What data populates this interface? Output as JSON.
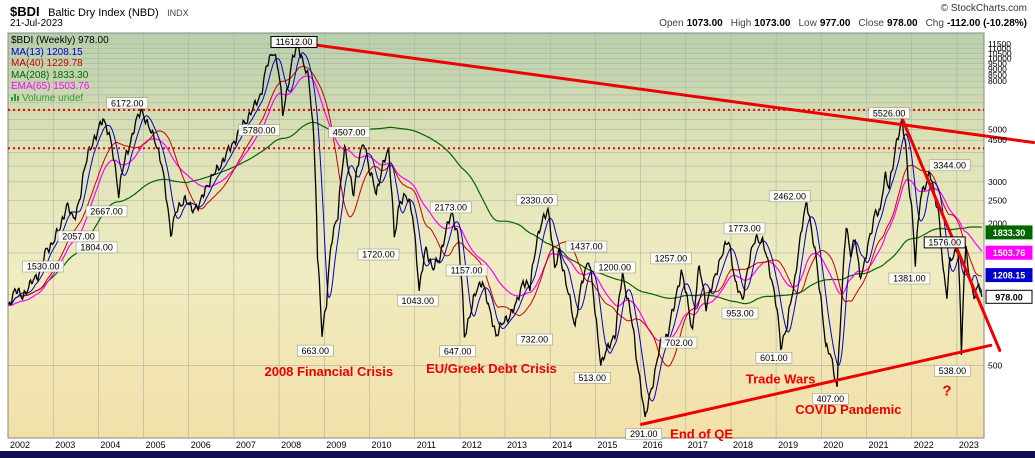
{
  "header": {
    "symbol": "$BDI",
    "name": "Baltic Dry Index (NBD)",
    "exchange": "INDX",
    "date": "21-Jul-2023",
    "copyright": "© StockCharts.com",
    "quote": {
      "items": [
        {
          "label": "Open",
          "value": "1073.00"
        },
        {
          "label": "High",
          "value": "1073.00"
        },
        {
          "label": "Low",
          "value": "977.00"
        },
        {
          "label": "Close",
          "value": "978.00"
        },
        {
          "label": "Chg",
          "value": "-112.00 (-10.28%)"
        }
      ]
    }
  },
  "legend": {
    "items": [
      {
        "key": "bdi",
        "label": "$BDI (Weekly) 978.00",
        "color": "#000000"
      },
      {
        "key": "ma13",
        "label": "MA(13) 1208.15",
        "color": "#0000cc"
      },
      {
        "key": "ma40",
        "label": "MA(40) 1229.78",
        "color": "#cc0000"
      },
      {
        "key": "ma208",
        "label": "MA(208) 1833.30",
        "color": "#006600"
      },
      {
        "key": "ema65",
        "label": "EMA(65) 1503.76",
        "color": "#ff00ff"
      },
      {
        "key": "volume",
        "label": "Volume undef",
        "color": "#339933",
        "icon": "volume-bars"
      }
    ]
  },
  "chart_data": {
    "type": "line",
    "title": "$BDI Baltic Dry Index (NBD) Weekly",
    "x_axis": {
      "range": [
        2002,
        2023.6
      ],
      "labels": [
        "2002",
        "2003",
        "2004",
        "2005",
        "2006",
        "2007",
        "2008",
        "2009",
        "2010",
        "2011",
        "2012",
        "2013",
        "2014",
        "2015",
        "2016",
        "2017",
        "2018",
        "2019",
        "2020",
        "2021",
        "2022",
        "2023"
      ]
    },
    "y_axis": {
      "scale": "log",
      "range": [
        247,
        12800
      ],
      "grid_min": 500,
      "grid_max": 11500,
      "grid_step": 500,
      "labeled_ticks": [
        500,
        2000,
        2500,
        3000,
        4500,
        5000,
        8000,
        8500,
        9000,
        9500,
        10000,
        10500,
        11000,
        11500
      ]
    },
    "series": [
      {
        "name": "MA(208)",
        "type": "sma",
        "window": 208,
        "color": "#006600",
        "width": 1.2
      },
      {
        "name": "EMA(65)",
        "type": "ema",
        "window": 65,
        "color": "#ff00ff",
        "width": 1.2
      },
      {
        "name": "MA(40)",
        "type": "sma",
        "window": 40,
        "color": "#cc0000",
        "width": 1
      },
      {
        "name": "MA(13)",
        "type": "sma",
        "window": 13,
        "color": "#0000cc",
        "width": 1
      },
      {
        "name": "$BDI (Weekly)",
        "type": "raw",
        "color": "#000000",
        "width": 1.3
      }
    ],
    "keypoints": [
      [
        2002.0,
        880
      ],
      [
        2002.15,
        1050
      ],
      [
        2002.3,
        980
      ],
      [
        2002.5,
        1100
      ],
      [
        2002.7,
        1250
      ],
      [
        2002.85,
        1530
      ],
      [
        2003.0,
        1680
      ],
      [
        2003.15,
        1900
      ],
      [
        2003.3,
        2400
      ],
      [
        2003.45,
        2057
      ],
      [
        2003.6,
        2600
      ],
      [
        2003.8,
        4200
      ],
      [
        2003.95,
        4600
      ],
      [
        2004.1,
        5681
      ],
      [
        2004.3,
        4200
      ],
      [
        2004.45,
        2667
      ],
      [
        2004.6,
        3800
      ],
      [
        2004.75,
        4700
      ],
      [
        2004.95,
        6172
      ],
      [
        2005.1,
        5100
      ],
      [
        2005.25,
        4600
      ],
      [
        2005.4,
        3500
      ],
      [
        2005.6,
        1804
      ],
      [
        2005.75,
        2300
      ],
      [
        2005.9,
        2550
      ],
      [
        2006.05,
        2300
      ],
      [
        2006.25,
        2400
      ],
      [
        2006.4,
        2900
      ],
      [
        2006.6,
        3300
      ],
      [
        2006.8,
        3800
      ],
      [
        2007.0,
        4450
      ],
      [
        2007.15,
        5000
      ],
      [
        2007.3,
        5600
      ],
      [
        2007.45,
        6200
      ],
      [
        2007.6,
        7100
      ],
      [
        2007.75,
        9500
      ],
      [
        2007.88,
        10900
      ],
      [
        2008.0,
        8500
      ],
      [
        2008.08,
        5780
      ],
      [
        2008.2,
        7800
      ],
      [
        2008.3,
        9800
      ],
      [
        2008.42,
        11612
      ],
      [
        2008.55,
        9200
      ],
      [
        2008.65,
        8200
      ],
      [
        2008.75,
        5200
      ],
      [
        2008.85,
        1400
      ],
      [
        2008.95,
        663
      ],
      [
        2009.05,
        950
      ],
      [
        2009.15,
        1600
      ],
      [
        2009.3,
        2200
      ],
      [
        2009.45,
        4100
      ],
      [
        2009.55,
        3300
      ],
      [
        2009.65,
        2700
      ],
      [
        2009.78,
        3800
      ],
      [
        2009.88,
        4507
      ],
      [
        2010.0,
        3300
      ],
      [
        2010.15,
        2700
      ],
      [
        2010.3,
        3500
      ],
      [
        2010.42,
        4100
      ],
      [
        2010.55,
        1720
      ],
      [
        2010.68,
        2450
      ],
      [
        2010.8,
        2700
      ],
      [
        2010.95,
        2150
      ],
      [
        2011.1,
        1043
      ],
      [
        2011.25,
        1550
      ],
      [
        2011.4,
        1300
      ],
      [
        2011.55,
        1400
      ],
      [
        2011.7,
        1900
      ],
      [
        2011.82,
        2173
      ],
      [
        2011.95,
        1850
      ],
      [
        2012.1,
        647
      ],
      [
        2012.3,
        950
      ],
      [
        2012.5,
        1157
      ],
      [
        2012.65,
        850
      ],
      [
        2012.8,
        680
      ],
      [
        2012.95,
        750
      ],
      [
        2013.1,
        820
      ],
      [
        2013.25,
        900
      ],
      [
        2013.4,
        1150
      ],
      [
        2013.55,
        1050
      ],
      [
        2013.7,
        1700
      ],
      [
        2013.82,
        2000
      ],
      [
        2013.95,
        2330
      ],
      [
        2014.1,
        1250
      ],
      [
        2014.2,
        1550
      ],
      [
        2014.35,
        1100
      ],
      [
        2014.55,
        732
      ],
      [
        2014.7,
        1100
      ],
      [
        2014.85,
        1437
      ],
      [
        2015.0,
        800
      ],
      [
        2015.12,
        513
      ],
      [
        2015.3,
        600
      ],
      [
        2015.45,
        700
      ],
      [
        2015.6,
        1200
      ],
      [
        2015.75,
        900
      ],
      [
        2015.9,
        550
      ],
      [
        2016.1,
        291
      ],
      [
        2016.3,
        450
      ],
      [
        2016.45,
        620
      ],
      [
        2016.6,
        680
      ],
      [
        2016.75,
        900
      ],
      [
        2016.9,
        1257
      ],
      [
        2017.05,
        900
      ],
      [
        2017.15,
        702
      ],
      [
        2017.3,
        1300
      ],
      [
        2017.45,
        900
      ],
      [
        2017.6,
        1100
      ],
      [
        2017.75,
        1400
      ],
      [
        2017.95,
        1700
      ],
      [
        2018.1,
        1100
      ],
      [
        2018.25,
        953
      ],
      [
        2018.4,
        1350
      ],
      [
        2018.55,
        1773
      ],
      [
        2018.7,
        1650
      ],
      [
        2018.85,
        1300
      ],
      [
        2019.0,
        900
      ],
      [
        2019.1,
        601
      ],
      [
        2019.25,
        750
      ],
      [
        2019.4,
        1100
      ],
      [
        2019.55,
        1800
      ],
      [
        2019.68,
        2462
      ],
      [
        2019.8,
        1800
      ],
      [
        2019.95,
        1090
      ],
      [
        2020.1,
        600
      ],
      [
        2020.2,
        550
      ],
      [
        2020.35,
        407
      ],
      [
        2020.45,
        900
      ],
      [
        2020.55,
        1950
      ],
      [
        2020.65,
        1500
      ],
      [
        2020.75,
        1700
      ],
      [
        2020.85,
        1200
      ],
      [
        2020.95,
        1350
      ],
      [
        2021.1,
        1800
      ],
      [
        2021.2,
        2300
      ],
      [
        2021.3,
        2200
      ],
      [
        2021.42,
        3200
      ],
      [
        2021.5,
        2900
      ],
      [
        2021.6,
        3600
      ],
      [
        2021.7,
        4700
      ],
      [
        2021.78,
        5526
      ],
      [
        2021.85,
        4600
      ],
      [
        2021.92,
        3000
      ],
      [
        2022.0,
        2300
      ],
      [
        2022.08,
        1381
      ],
      [
        2022.2,
        2550
      ],
      [
        2022.3,
        2900
      ],
      [
        2022.4,
        3344
      ],
      [
        2022.5,
        2600
      ],
      [
        2022.6,
        2200
      ],
      [
        2022.7,
        1250
      ],
      [
        2022.78,
        965
      ],
      [
        2022.85,
        1400
      ],
      [
        2022.95,
        1515
      ],
      [
        2023.02,
        1576
      ],
      [
        2023.1,
        538
      ],
      [
        2023.2,
        1600
      ],
      [
        2023.3,
        1100
      ],
      [
        2023.4,
        950
      ],
      [
        2023.48,
        1150
      ],
      [
        2023.55,
        978
      ]
    ],
    "price_labels": [
      {
        "text": "1530.00",
        "x": 2002.78,
        "y": 1315
      },
      {
        "text": "2057.00",
        "x": 2003.56,
        "y": 1762
      },
      {
        "text": "1804.00",
        "x": 2003.96,
        "y": 1583
      },
      {
        "text": "2667.00",
        "x": 2004.18,
        "y": 2250
      },
      {
        "text": "6172.00",
        "x": 2004.64,
        "y": 6460
      },
      {
        "text": "5780.00",
        "x": 2007.56,
        "y": 4966
      },
      {
        "text": "11612.00",
        "x": 2008.33,
        "y": 11730,
        "boxed": true
      },
      {
        "text": "663.00",
        "x": 2008.8,
        "y": 579
      },
      {
        "text": "4507.00",
        "x": 2009.55,
        "y": 4870
      },
      {
        "text": "1720.00",
        "x": 2010.2,
        "y": 1478
      },
      {
        "text": "1043.00",
        "x": 2011.07,
        "y": 943
      },
      {
        "text": "2173.00",
        "x": 2011.8,
        "y": 2339
      },
      {
        "text": "647.00",
        "x": 2011.95,
        "y": 575
      },
      {
        "text": "1157.00",
        "x": 2012.15,
        "y": 1264
      },
      {
        "text": "2330.00",
        "x": 2013.7,
        "y": 2505
      },
      {
        "text": "732.00",
        "x": 2013.65,
        "y": 645
      },
      {
        "text": "1437.00",
        "x": 2014.8,
        "y": 1598
      },
      {
        "text": "513.00",
        "x": 2014.93,
        "y": 444
      },
      {
        "text": "1200.00",
        "x": 2015.43,
        "y": 1302
      },
      {
        "text": "291.00",
        "x": 2016.07,
        "y": 257
      },
      {
        "text": "1257.00",
        "x": 2016.67,
        "y": 1422
      },
      {
        "text": "702.00",
        "x": 2016.85,
        "y": 626
      },
      {
        "text": "953.00",
        "x": 2018.2,
        "y": 831
      },
      {
        "text": "1773.00",
        "x": 2018.3,
        "y": 1906
      },
      {
        "text": "601.00",
        "x": 2018.95,
        "y": 540
      },
      {
        "text": "2462.00",
        "x": 2019.3,
        "y": 2605
      },
      {
        "text": "407.00",
        "x": 2020.2,
        "y": 362
      },
      {
        "text": "5526.00",
        "x": 2021.5,
        "y": 5861
      },
      {
        "text": "1381.00",
        "x": 2021.95,
        "y": 1169
      },
      {
        "text": "1576.00",
        "x": 2022.73,
        "y": 1662,
        "boxed": true
      },
      {
        "text": "3344.00",
        "x": 2022.84,
        "y": 3525
      },
      {
        "text": "538.00",
        "x": 2022.9,
        "y": 476
      }
    ],
    "event_labels": [
      {
        "text": "2008 Financial Crisis",
        "x": 2009.1,
        "y": 470,
        "size": 13
      },
      {
        "text": "EU/Greek Debt Crisis",
        "x": 2012.7,
        "y": 483,
        "size": 13
      },
      {
        "text": "End of QE",
        "x": 2017.35,
        "y": 256,
        "size": 13
      },
      {
        "text": "Trade Wars",
        "x": 2019.1,
        "y": 436,
        "size": 13
      },
      {
        "text": "COVID Pandemic",
        "x": 2020.6,
        "y": 325,
        "size": 13
      },
      {
        "text": "?",
        "x": 2022.78,
        "y": 388,
        "size": 15
      }
    ],
    "overlays": {
      "color": "#ee0000",
      "trendlines": [
        {
          "x1": 2008.35,
          "y1": 11700,
          "x2": 2024.7,
          "y2": 4400
        },
        {
          "x1": 2021.7,
          "y1": 6100,
          "x2": 2023.95,
          "y2": 580
        },
        {
          "x1": 2016.02,
          "y1": 282,
          "x2": 2023.75,
          "y2": 610
        }
      ],
      "hlines": [
        {
          "y": 6050
        },
        {
          "y": 4160
        }
      ]
    },
    "last_value_boxes": [
      {
        "text": "1833.30",
        "v": 1833.3,
        "bg": "#006600",
        "fg": "#ffffff"
      },
      {
        "text": "1503.76",
        "v": 1503.76,
        "bg": "#ff00ff",
        "fg": "#ffffff"
      },
      {
        "text": "1208.15",
        "v": 1208.15,
        "bg": "#0000cc",
        "fg": "#ffffff"
      },
      {
        "text": "978.00",
        "v": 978,
        "bg": "#ffffff",
        "fg": "#000000",
        "border": "#000000"
      }
    ]
  }
}
